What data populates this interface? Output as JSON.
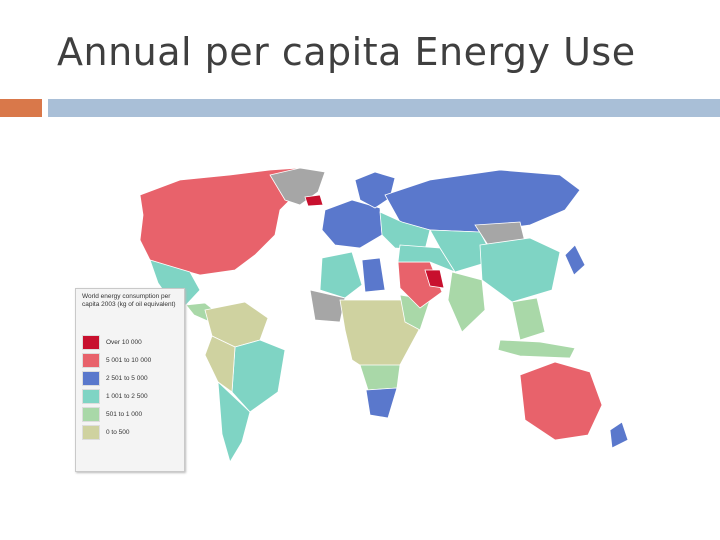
{
  "slide": {
    "title": "Annual per capita Energy Use"
  },
  "colors": {
    "title_text": "#3f3f3f",
    "accent_orange": "#d9784a",
    "accent_blue": "#a9bfd7",
    "ocean": "#ffffff",
    "no_data": "#a6a6a6"
  },
  "legend": {
    "title": "World energy consumption per capita 2003 (kg of oil equivalent)",
    "items": [
      {
        "label": "Over 10 000",
        "color": "#c8102e"
      },
      {
        "label": "5 001 to 10 000",
        "color": "#e8626b"
      },
      {
        "label": "2 501 to 5 000",
        "color": "#5a78cc"
      },
      {
        "label": "1 001 to 2 500",
        "color": "#7fd4c4"
      },
      {
        "label": "501 to 1 000",
        "color": "#a9d8a8"
      },
      {
        "label": "0 to 500",
        "color": "#cfd2a0"
      }
    ]
  },
  "regions": [
    {
      "id": "canada-usa",
      "class": 1
    },
    {
      "id": "greenland",
      "class": -1
    },
    {
      "id": "iceland",
      "class": 0
    },
    {
      "id": "mexico",
      "class": 3
    },
    {
      "id": "central-america",
      "class": 4
    },
    {
      "id": "south-america-north",
      "class": 5
    },
    {
      "id": "brazil",
      "class": 3
    },
    {
      "id": "andes-west",
      "class": 5
    },
    {
      "id": "argentina-chile",
      "class": 3
    },
    {
      "id": "western-europe",
      "class": 2
    },
    {
      "id": "scandinavia",
      "class": 2
    },
    {
      "id": "russia",
      "class": 2
    },
    {
      "id": "eastern-europe",
      "class": 3
    },
    {
      "id": "north-africa",
      "class": 3
    },
    {
      "id": "libya",
      "class": 2
    },
    {
      "id": "sahara",
      "class": -1
    },
    {
      "id": "central-africa",
      "class": 5
    },
    {
      "id": "east-africa",
      "class": 4
    },
    {
      "id": "southern-africa-north",
      "class": 4
    },
    {
      "id": "south-africa",
      "class": 2
    },
    {
      "id": "arabian-peninsula",
      "class": 1
    },
    {
      "id": "gulf-states",
      "class": 0
    },
    {
      "id": "middle-east",
      "class": 3
    },
    {
      "id": "central-asia",
      "class": 3
    },
    {
      "id": "mongolia",
      "class": -1
    },
    {
      "id": "china",
      "class": 3
    },
    {
      "id": "india-south-asia",
      "class": 4
    },
    {
      "id": "southeast-asia",
      "class": 4
    },
    {
      "id": "japan",
      "class": 2
    },
    {
      "id": "indonesia",
      "class": 4
    },
    {
      "id": "australia",
      "class": 1
    },
    {
      "id": "new-zealand",
      "class": 2
    }
  ]
}
